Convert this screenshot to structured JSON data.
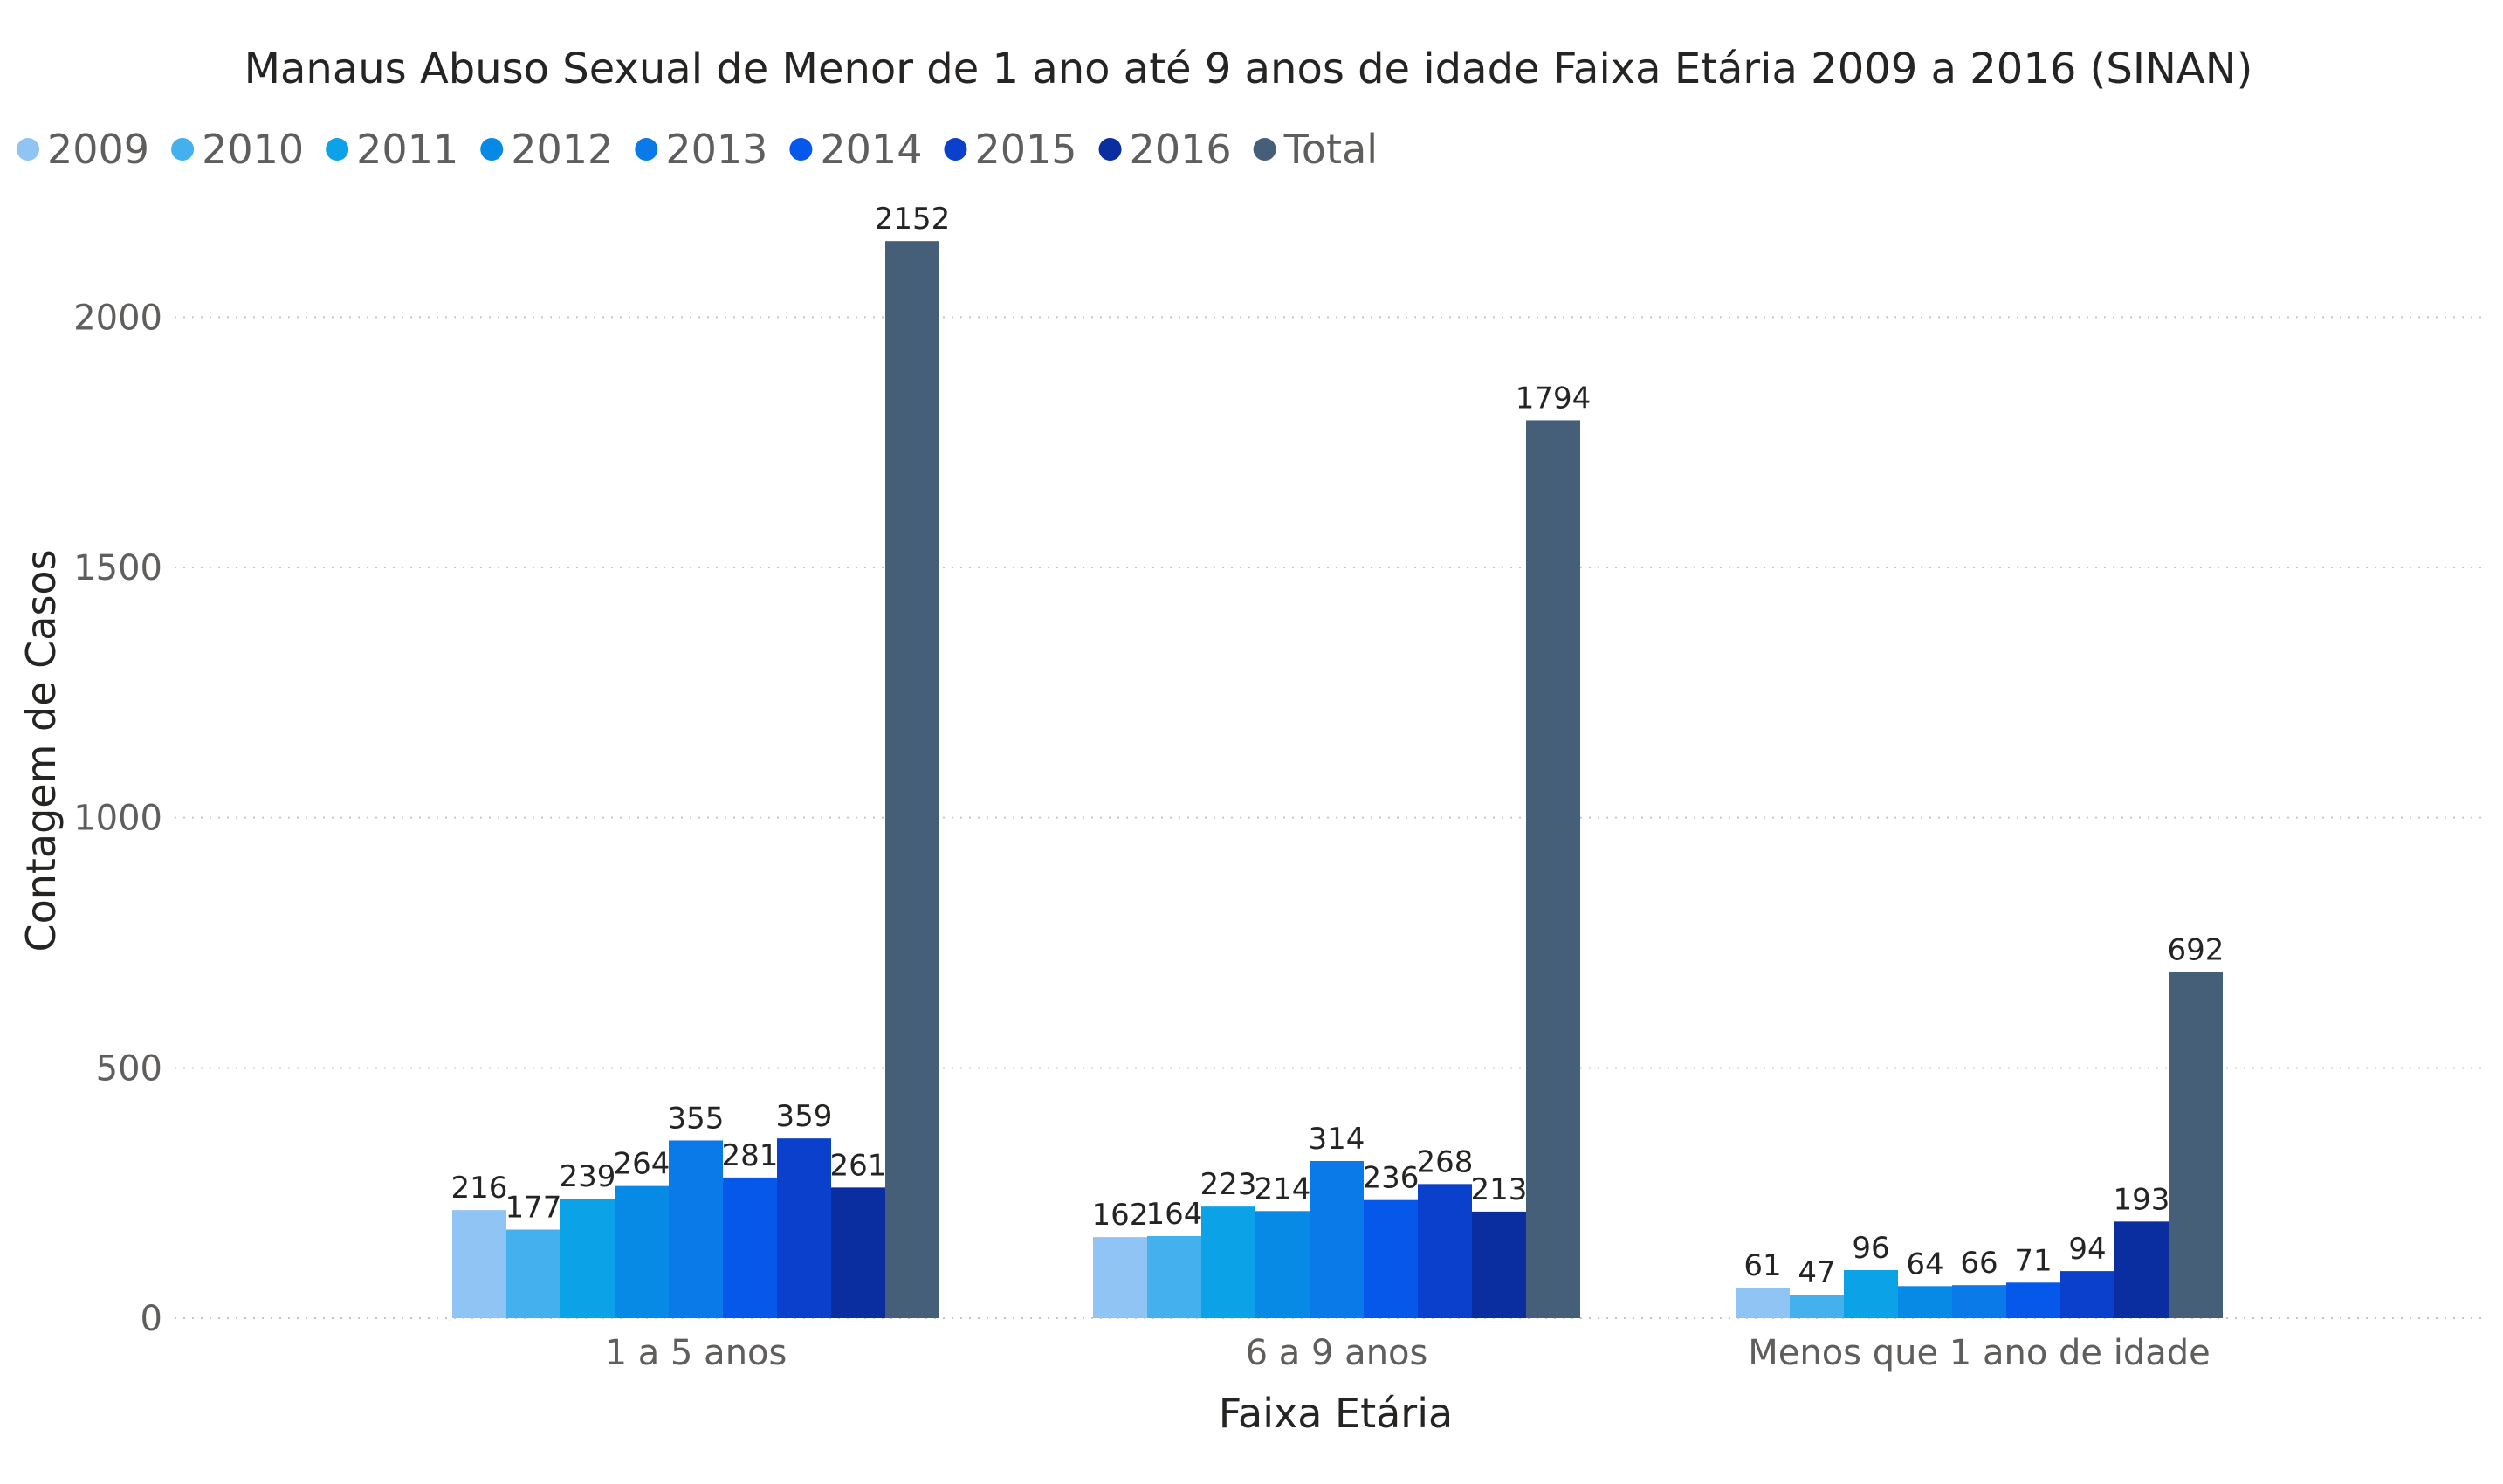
{
  "chart_data": {
    "type": "bar",
    "title": "Manaus Abuso Sexual de Menor de 1 ano até 9 anos de idade Faixa Etária 2009 a 2016 (SINAN)",
    "xlabel": "Faixa Etária",
    "ylabel": "Contagem de Casos",
    "categories": [
      "1 a 5 anos",
      "6 a 9 anos",
      "Menos que 1 ano de idade"
    ],
    "yticks": [
      "0",
      "500",
      "1000",
      "1500",
      "2000"
    ],
    "ylim": [
      0,
      2250
    ],
    "grid": true,
    "legend_position": "top-left",
    "series": [
      {
        "name": "2009",
        "color": "#8fc4f4",
        "values": [
          216,
          162,
          61
        ]
      },
      {
        "name": "2010",
        "color": "#44b0ee",
        "values": [
          177,
          164,
          47
        ]
      },
      {
        "name": "2011",
        "color": "#0ca2e8",
        "values": [
          239,
          223,
          96
        ]
      },
      {
        "name": "2012",
        "color": "#0789e6",
        "values": [
          264,
          214,
          64
        ]
      },
      {
        "name": "2013",
        "color": "#0a7ae8",
        "values": [
          355,
          314,
          66
        ]
      },
      {
        "name": "2014",
        "color": "#0558ea",
        "values": [
          281,
          236,
          71
        ]
      },
      {
        "name": "2015",
        "color": "#0a40cc",
        "values": [
          359,
          268,
          94
        ]
      },
      {
        "name": "2016",
        "color": "#0a2ea0",
        "values": [
          261,
          213,
          193
        ]
      },
      {
        "name": "Total",
        "color": "#455f78",
        "values": [
          2152,
          1794,
          692
        ]
      }
    ]
  }
}
